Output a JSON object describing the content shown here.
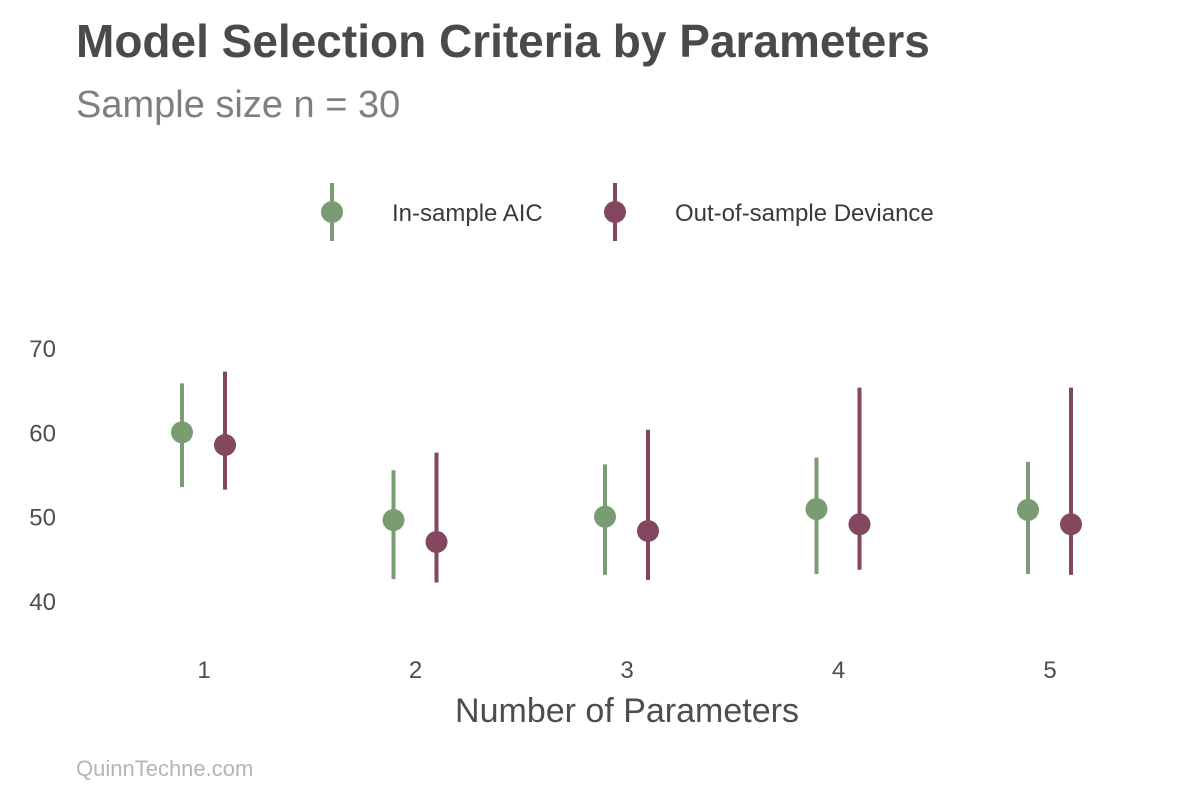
{
  "colors": {
    "aic": "#7a9c72",
    "deviance": "#834760"
  },
  "caption": "QuinnTechne.com",
  "chart_data": {
    "type": "scatter",
    "title": "Model Selection Criteria by Parameters",
    "subtitle": "Sample size n = 30",
    "xlabel": "Number of Parameters",
    "ylabel": "",
    "categories": [
      "1",
      "2",
      "3",
      "4",
      "5"
    ],
    "y_ticks": [
      40,
      50,
      60,
      70
    ],
    "ylim": [
      35,
      73
    ],
    "grid": false,
    "legend_position": "top",
    "series": [
      {
        "name": "In-sample AIC",
        "color": "#7a9c72",
        "values": [
          60.0,
          49.6,
          50.0,
          50.9,
          50.8
        ],
        "upper": [
          65.8,
          55.5,
          56.2,
          57.0,
          56.5
        ],
        "lower": [
          53.5,
          42.6,
          43.1,
          43.2,
          43.2
        ]
      },
      {
        "name": "Out-of-sample Deviance",
        "color": "#834760",
        "values": [
          58.5,
          47.0,
          48.3,
          49.1,
          49.1
        ],
        "upper": [
          67.2,
          57.6,
          60.3,
          65.3,
          65.3
        ],
        "lower": [
          53.2,
          42.2,
          42.5,
          43.7,
          43.1
        ]
      }
    ]
  }
}
